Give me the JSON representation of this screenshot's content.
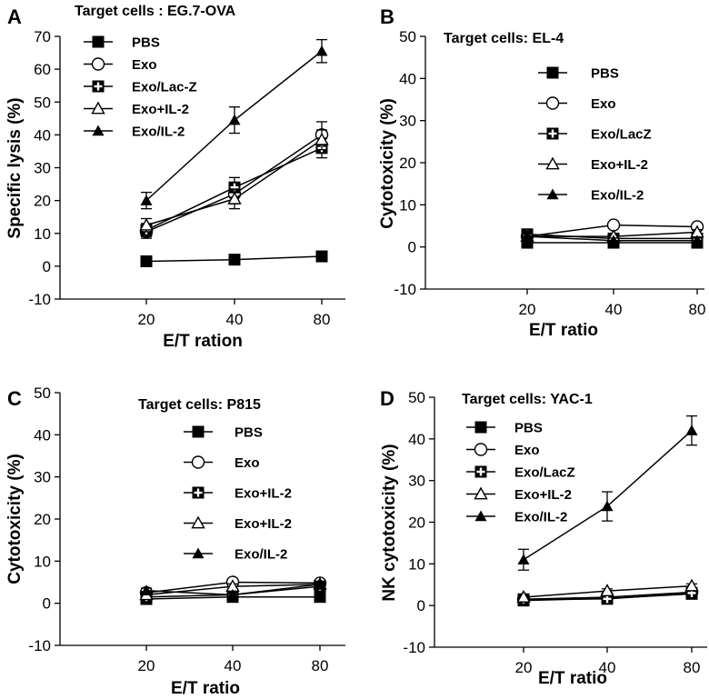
{
  "chart_data": [
    {
      "type": "line",
      "panel": "A",
      "title": "Target cells : EG.7-OVA",
      "xlabel": "E/T ration",
      "ylabel": "Specific lysis (%)",
      "categories": [
        "20",
        "40",
        "80"
      ],
      "ylim": [
        -10,
        70
      ],
      "yticks": [
        -10,
        0,
        10,
        20,
        30,
        40,
        50,
        60,
        70
      ],
      "legend_position": "top",
      "series": [
        {
          "name": "PBS",
          "marker": "filled-square",
          "values": [
            1.5,
            2,
            3
          ],
          "errors": [
            0.5,
            0.5,
            0.5
          ]
        },
        {
          "name": "Exo",
          "marker": "open-circle",
          "values": [
            10.5,
            22,
            40
          ],
          "errors": [
            2,
            3,
            4
          ]
        },
        {
          "name": "Exo/Lac-Z",
          "marker": "cross-square",
          "values": [
            11,
            24,
            36
          ],
          "errors": [
            2,
            3,
            3
          ]
        },
        {
          "name": "Exo+IL-2",
          "marker": "open-triangle",
          "values": [
            12.5,
            20.5,
            38.5
          ],
          "errors": [
            2,
            3,
            3
          ]
        },
        {
          "name": "Exo/IL-2",
          "marker": "filled-triangle",
          "values": [
            20,
            44.5,
            65.5
          ],
          "errors": [
            2.5,
            4,
            3.5
          ]
        }
      ]
    },
    {
      "type": "line",
      "panel": "B",
      "title": "Target cells: EL-4",
      "xlabel": "E/T ratio",
      "ylabel": "Cytotoxicity (%)",
      "categories": [
        "20",
        "40",
        "80"
      ],
      "ylim": [
        -10,
        50
      ],
      "yticks": [
        -10,
        0,
        10,
        20,
        30,
        40,
        50
      ],
      "legend_position": "right",
      "series": [
        {
          "name": "PBS",
          "marker": "filled-square",
          "values": [
            1,
            1,
            1
          ],
          "errors": [
            0.5,
            0.5,
            0.5
          ]
        },
        {
          "name": "Exo",
          "marker": "open-circle",
          "values": [
            2.5,
            5.2,
            4.8
          ],
          "errors": [
            0.6,
            0.6,
            0.6
          ]
        },
        {
          "name": "Exo/LacZ",
          "marker": "cross-square",
          "values": [
            3,
            2,
            2
          ],
          "errors": [
            0.6,
            0.6,
            0.6
          ]
        },
        {
          "name": "Exo+IL-2",
          "marker": "open-triangle",
          "values": [
            2.5,
            2.5,
            3.5
          ],
          "errors": [
            0.6,
            0.6,
            0.6
          ]
        },
        {
          "name": "Exo/IL-2",
          "marker": "filled-triangle",
          "values": [
            2.5,
            1.5,
            1.5
          ],
          "errors": [
            0.6,
            0.6,
            0.6
          ]
        }
      ]
    },
    {
      "type": "line",
      "panel": "C",
      "title": "Target cells: P815",
      "xlabel": "E/T ratio",
      "ylabel": "Cytotoxicity (%)",
      "categories": [
        "20",
        "40",
        "80"
      ],
      "ylim": [
        -10,
        50
      ],
      "yticks": [
        -10,
        0,
        10,
        20,
        30,
        40,
        50
      ],
      "legend_position": "right",
      "series": [
        {
          "name": "PBS",
          "marker": "filled-square",
          "values": [
            1,
            1.5,
            1.5
          ],
          "errors": [
            0.5,
            0.5,
            0.5
          ]
        },
        {
          "name": "Exo",
          "marker": "open-circle",
          "values": [
            2.5,
            5,
            4.8
          ],
          "errors": [
            0.6,
            0.6,
            0.6
          ]
        },
        {
          "name": "Exo+IL-2",
          "marker": "cross-square",
          "values": [
            1.5,
            2,
            4
          ],
          "errors": [
            0.6,
            0.6,
            0.6
          ]
        },
        {
          "name": "Exo+IL-2",
          "marker": "open-triangle",
          "values": [
            2,
            4,
            4.5
          ],
          "errors": [
            0.6,
            0.6,
            0.6
          ]
        },
        {
          "name": "Exo/IL-2",
          "marker": "filled-triangle",
          "values": [
            3,
            2,
            4.5
          ],
          "errors": [
            0.6,
            0.6,
            0.6
          ]
        }
      ]
    },
    {
      "type": "line",
      "panel": "D",
      "title": "Target cells: YAC-1",
      "xlabel": "E/T ratio",
      "ylabel": "NK cytotoxicity (%)",
      "categories": [
        "20",
        "40",
        "80"
      ],
      "ylim": [
        -10,
        50
      ],
      "yticks": [
        -10,
        0,
        10,
        20,
        30,
        40,
        50
      ],
      "legend_position": "top-left",
      "series": [
        {
          "name": "PBS",
          "marker": "filled-square",
          "values": [
            1.2,
            1.7,
            2.8
          ],
          "errors": [
            0.5,
            0.5,
            0.5
          ]
        },
        {
          "name": "Exo",
          "marker": "open-circle",
          "values": [
            1.5,
            2,
            3.2
          ],
          "errors": [
            0.5,
            0.5,
            0.5
          ]
        },
        {
          "name": "Exo/LacZ",
          "marker": "cross-square",
          "values": [
            1.5,
            1.6,
            3
          ],
          "errors": [
            0.5,
            0.5,
            0.5
          ]
        },
        {
          "name": "Exo+IL-2",
          "marker": "open-triangle",
          "values": [
            2,
            3.5,
            4.7
          ],
          "errors": [
            0.5,
            0.5,
            0.5
          ]
        },
        {
          "name": "Exo/IL-2",
          "marker": "filled-triangle",
          "values": [
            11,
            23.8,
            42
          ],
          "errors": [
            2.5,
            3.5,
            3.5
          ]
        }
      ]
    }
  ]
}
